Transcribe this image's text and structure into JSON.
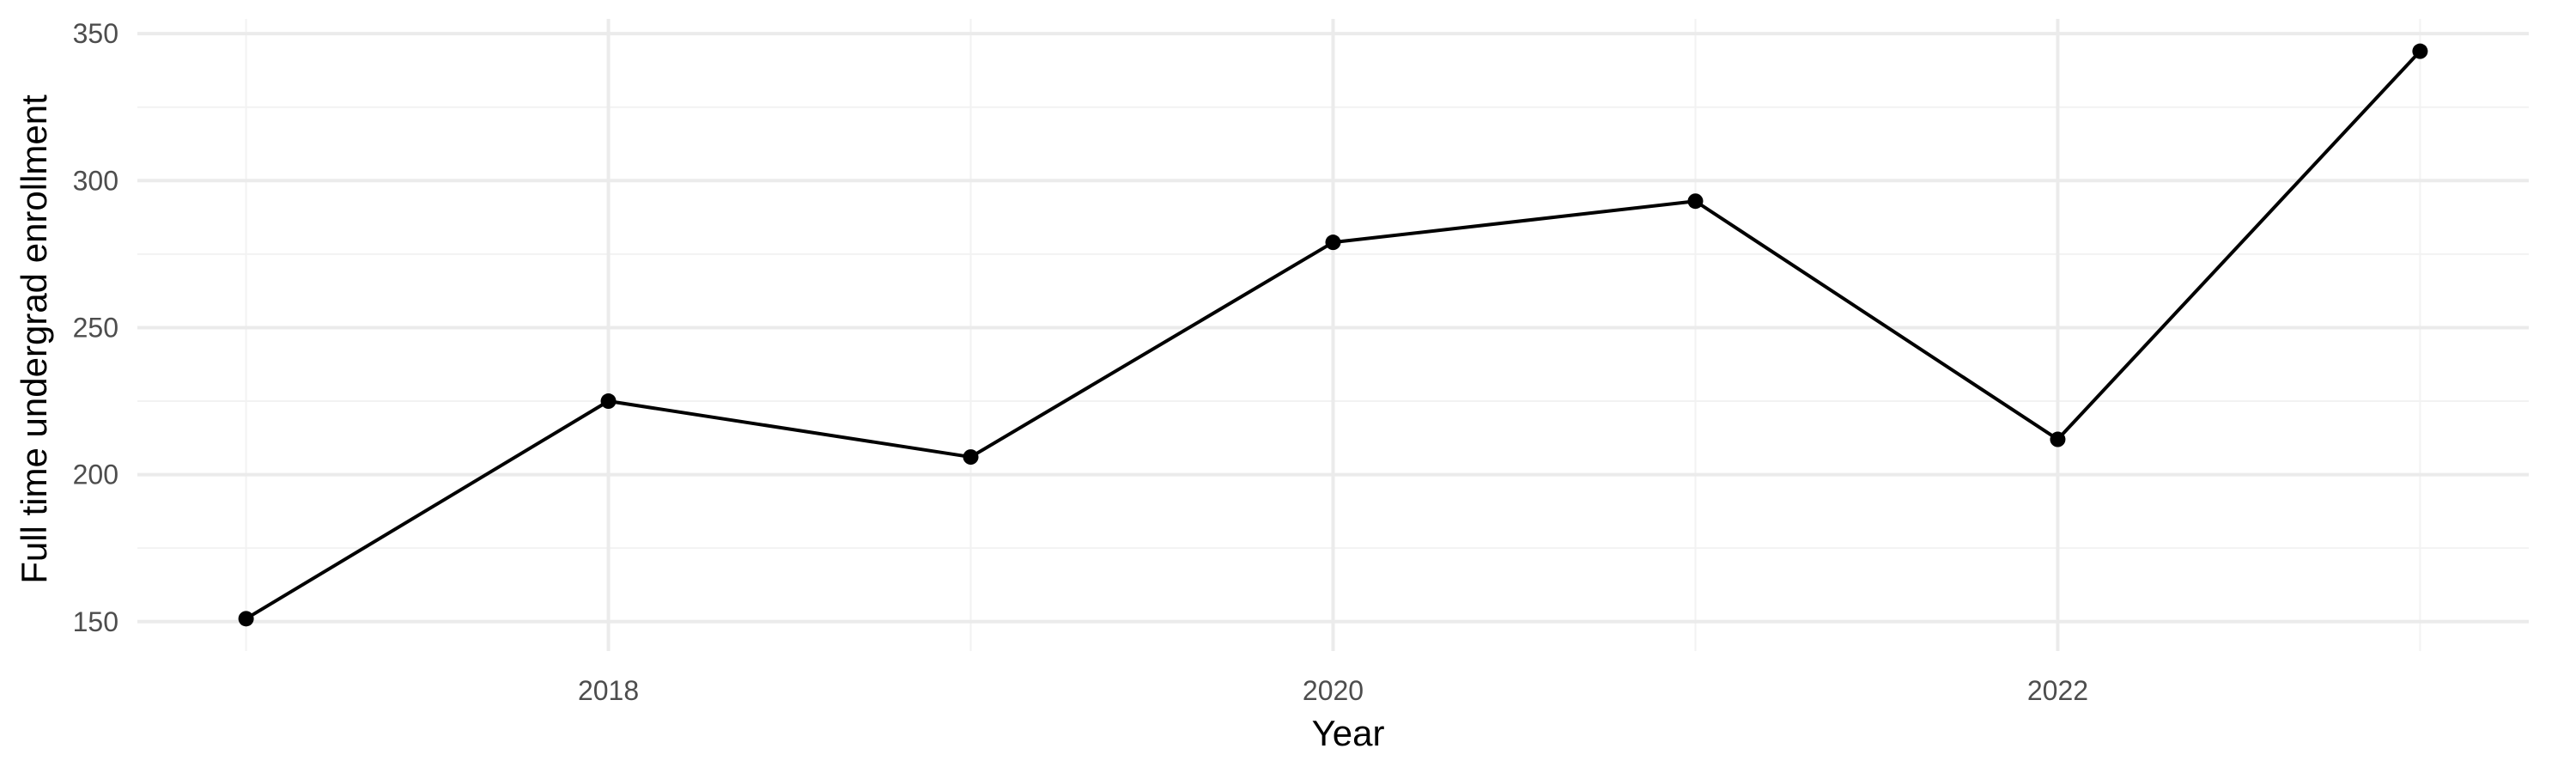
{
  "chart_data": {
    "type": "line",
    "title": "",
    "xlabel": "Year",
    "ylabel": "Full time undergrad enrollment",
    "x": [
      2017,
      2018,
      2019,
      2020,
      2021,
      2022,
      2023
    ],
    "series": [
      {
        "values": [
          151,
          225,
          206,
          279,
          293,
          212,
          344
        ]
      }
    ],
    "x_ticks": [
      2018,
      2020,
      2022
    ],
    "x_tick_labels": [
      "2018",
      "2020",
      "2022"
    ],
    "y_ticks": [
      150,
      200,
      250,
      300,
      350
    ],
    "y_tick_labels": [
      "150",
      "200",
      "250",
      "300",
      "350"
    ],
    "xlim": [
      2016.7,
      2023.3
    ],
    "ylim": [
      140,
      355
    ],
    "grid": true,
    "legend": "none",
    "colors": {
      "line": "#000000",
      "point": "#000000",
      "grid_major": "#ebebeb",
      "grid_minor": "#f2f2f2",
      "background": "#ffffff"
    }
  }
}
